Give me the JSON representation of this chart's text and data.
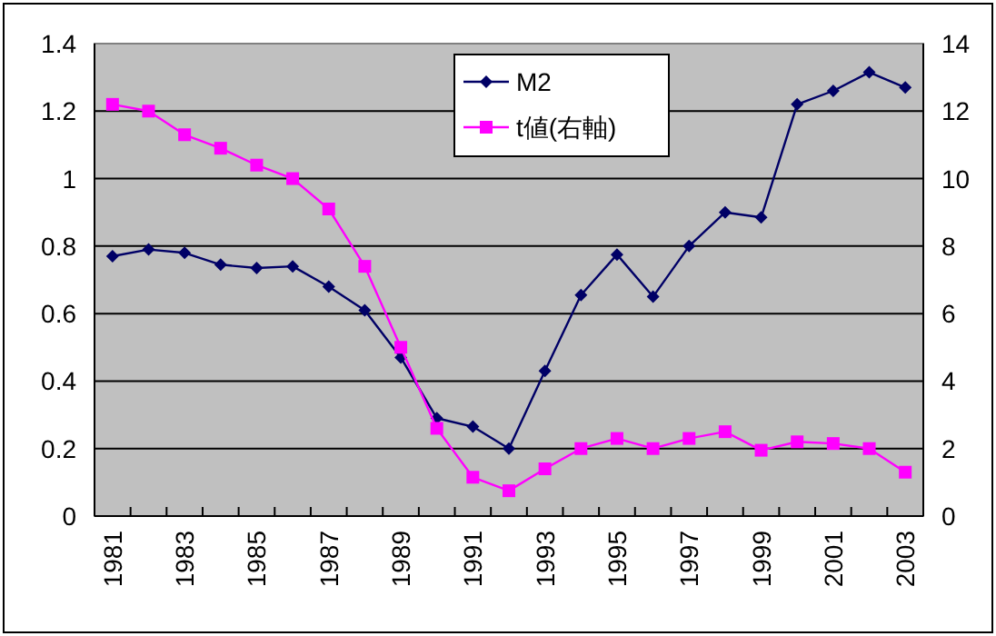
{
  "chart_data": {
    "type": "line",
    "categories": [
      "1981",
      null,
      "1983",
      null,
      "1985",
      null,
      "1987",
      null,
      "1989",
      null,
      "1991",
      null,
      "1993",
      null,
      "1995",
      null,
      "1997",
      null,
      "1999",
      null,
      "2001",
      null,
      "2003"
    ],
    "series": [
      {
        "name": "M2",
        "color": "#000066",
        "marker": "diamond",
        "values": [
          0.77,
          0.79,
          0.78,
          0.745,
          0.735,
          0.74,
          0.68,
          0.61,
          0.47,
          0.29,
          0.265,
          0.2,
          0.43,
          0.655,
          0.775,
          0.65,
          0.8,
          0.9,
          0.885,
          1.22,
          1.26,
          1.315,
          1.27
        ]
      },
      {
        "name": "t値(右軸)",
        "color": "#ff00ff",
        "marker": "square",
        "axis": "y2",
        "values": [
          12.2,
          12.0,
          11.3,
          10.9,
          10.4,
          10.0,
          9.1,
          7.4,
          5.0,
          2.6,
          1.15,
          0.75,
          1.4,
          2.0,
          2.3,
          2.0,
          2.3,
          2.5,
          1.95,
          2.2,
          2.15,
          2.0,
          1.3
        ]
      }
    ],
    "ylim": [
      0,
      1.4
    ],
    "yticks": [
      0,
      0.2,
      0.4,
      0.6,
      0.8,
      1,
      1.2,
      1.4
    ],
    "y2lim": [
      0,
      14
    ],
    "y2ticks": [
      0,
      2,
      4,
      6,
      8,
      10,
      12,
      14
    ],
    "grid": "y",
    "legend": "top"
  }
}
